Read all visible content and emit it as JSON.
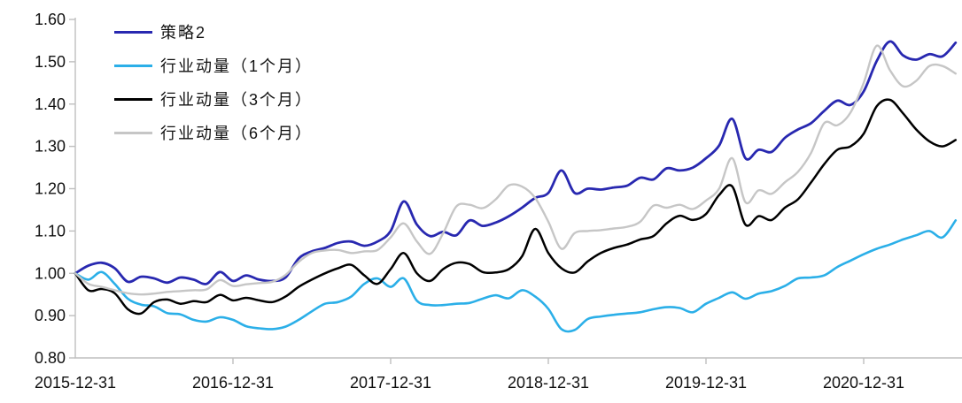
{
  "colors": {
    "axis": "#bfbfbf",
    "tick_text": "#111111",
    "background": "#ffffff",
    "series_strategy2": "#2828b0",
    "series_mom1m": "#2bafe8",
    "series_mom3m": "#000000",
    "series_mom6m": "#c6c6c6"
  },
  "chart_data": {
    "type": "line",
    "title": "",
    "xlabel": "",
    "ylabel": "",
    "grid": false,
    "legend_position": "top-left",
    "ylim": [
      0.8,
      1.6
    ],
    "y_tick_labels": [
      "0.80",
      "0.90",
      "1.00",
      "1.10",
      "1.20",
      "1.30",
      "1.40",
      "1.50",
      "1.60"
    ],
    "x_tick_labels": [
      "2015-12-31",
      "2016-12-31",
      "2017-12-31",
      "2018-12-31",
      "2019-12-31",
      "2020-12-31"
    ],
    "x_tick_positions": [
      0,
      12,
      24,
      36,
      48,
      60
    ],
    "x": [
      "2015-12",
      "2016-01",
      "2016-02",
      "2016-03",
      "2016-04",
      "2016-05",
      "2016-06",
      "2016-07",
      "2016-08",
      "2016-09",
      "2016-10",
      "2016-11",
      "2016-12",
      "2017-01",
      "2017-02",
      "2017-03",
      "2017-04",
      "2017-05",
      "2017-06",
      "2017-07",
      "2017-08",
      "2017-09",
      "2017-10",
      "2017-11",
      "2017-12",
      "2018-01",
      "2018-02",
      "2018-03",
      "2018-04",
      "2018-05",
      "2018-06",
      "2018-07",
      "2018-08",
      "2018-09",
      "2018-10",
      "2018-11",
      "2018-12",
      "2019-01",
      "2019-02",
      "2019-03",
      "2019-04",
      "2019-05",
      "2019-06",
      "2019-07",
      "2019-08",
      "2019-09",
      "2019-10",
      "2019-11",
      "2019-12",
      "2020-01",
      "2020-02",
      "2020-03",
      "2020-04",
      "2020-05",
      "2020-06",
      "2020-07",
      "2020-08",
      "2020-09",
      "2020-10",
      "2020-11",
      "2020-12",
      "2021-01",
      "2021-02",
      "2021-03",
      "2021-04",
      "2021-05",
      "2021-06",
      "2021-07"
    ],
    "series": [
      {
        "name": "策略2",
        "color": "#2828b0",
        "values": [
          1.0,
          1.018,
          1.025,
          1.012,
          0.98,
          0.992,
          0.988,
          0.978,
          0.99,
          0.985,
          0.975,
          1.003,
          0.982,
          0.995,
          0.985,
          0.982,
          0.99,
          1.035,
          1.052,
          1.06,
          1.072,
          1.075,
          1.065,
          1.075,
          1.1,
          1.17,
          1.115,
          1.088,
          1.098,
          1.09,
          1.125,
          1.112,
          1.12,
          1.135,
          1.155,
          1.178,
          1.19,
          1.243,
          1.19,
          1.2,
          1.198,
          1.203,
          1.207,
          1.226,
          1.222,
          1.248,
          1.243,
          1.25,
          1.272,
          1.302,
          1.365,
          1.272,
          1.292,
          1.287,
          1.32,
          1.34,
          1.355,
          1.384,
          1.408,
          1.398,
          1.43,
          1.502,
          1.548,
          1.515,
          1.505,
          1.518,
          1.513,
          1.545
        ]
      },
      {
        "name": "行业动量（1个月）",
        "color": "#2bafe8",
        "values": [
          1.0,
          0.985,
          1.003,
          0.975,
          0.94,
          0.926,
          0.922,
          0.906,
          0.903,
          0.89,
          0.886,
          0.896,
          0.89,
          0.875,
          0.87,
          0.868,
          0.874,
          0.89,
          0.91,
          0.928,
          0.932,
          0.945,
          0.975,
          0.988,
          0.968,
          0.988,
          0.935,
          0.925,
          0.925,
          0.928,
          0.93,
          0.94,
          0.948,
          0.941,
          0.96,
          0.945,
          0.916,
          0.868,
          0.866,
          0.892,
          0.898,
          0.902,
          0.905,
          0.908,
          0.915,
          0.92,
          0.918,
          0.908,
          0.928,
          0.942,
          0.955,
          0.94,
          0.952,
          0.958,
          0.97,
          0.988,
          0.99,
          0.995,
          1.015,
          1.03,
          1.045,
          1.058,
          1.068,
          1.08,
          1.09,
          1.1,
          1.085,
          1.125
        ]
      },
      {
        "name": "行业动量（3个月）",
        "color": "#000000",
        "values": [
          1.0,
          0.96,
          0.963,
          0.953,
          0.915,
          0.905,
          0.932,
          0.938,
          0.928,
          0.934,
          0.932,
          0.949,
          0.936,
          0.942,
          0.936,
          0.932,
          0.945,
          0.968,
          0.985,
          1.0,
          1.012,
          1.02,
          0.995,
          0.975,
          1.01,
          1.048,
          1.0,
          0.982,
          1.01,
          1.025,
          1.022,
          1.003,
          1.002,
          1.01,
          1.04,
          1.105,
          1.048,
          1.012,
          1.002,
          1.028,
          1.048,
          1.06,
          1.068,
          1.08,
          1.088,
          1.118,
          1.136,
          1.126,
          1.14,
          1.185,
          1.205,
          1.115,
          1.135,
          1.126,
          1.155,
          1.175,
          1.215,
          1.258,
          1.292,
          1.3,
          1.33,
          1.395,
          1.41,
          1.378,
          1.34,
          1.312,
          1.3,
          1.315
        ]
      },
      {
        "name": "行业动量（6个月）",
        "color": "#c6c6c6",
        "values": [
          1.0,
          0.975,
          0.968,
          0.96,
          0.953,
          0.95,
          0.952,
          0.956,
          0.958,
          0.96,
          0.962,
          0.984,
          0.97,
          0.974,
          0.977,
          0.98,
          0.996,
          1.027,
          1.048,
          1.054,
          1.055,
          1.048,
          1.052,
          1.055,
          1.085,
          1.118,
          1.075,
          1.046,
          1.095,
          1.158,
          1.162,
          1.154,
          1.175,
          1.208,
          1.205,
          1.178,
          1.122,
          1.058,
          1.095,
          1.1,
          1.102,
          1.106,
          1.11,
          1.122,
          1.16,
          1.155,
          1.162,
          1.152,
          1.172,
          1.2,
          1.272,
          1.168,
          1.196,
          1.188,
          1.215,
          1.24,
          1.285,
          1.355,
          1.35,
          1.38,
          1.45,
          1.538,
          1.48,
          1.442,
          1.455,
          1.49,
          1.49,
          1.472
        ]
      }
    ]
  }
}
